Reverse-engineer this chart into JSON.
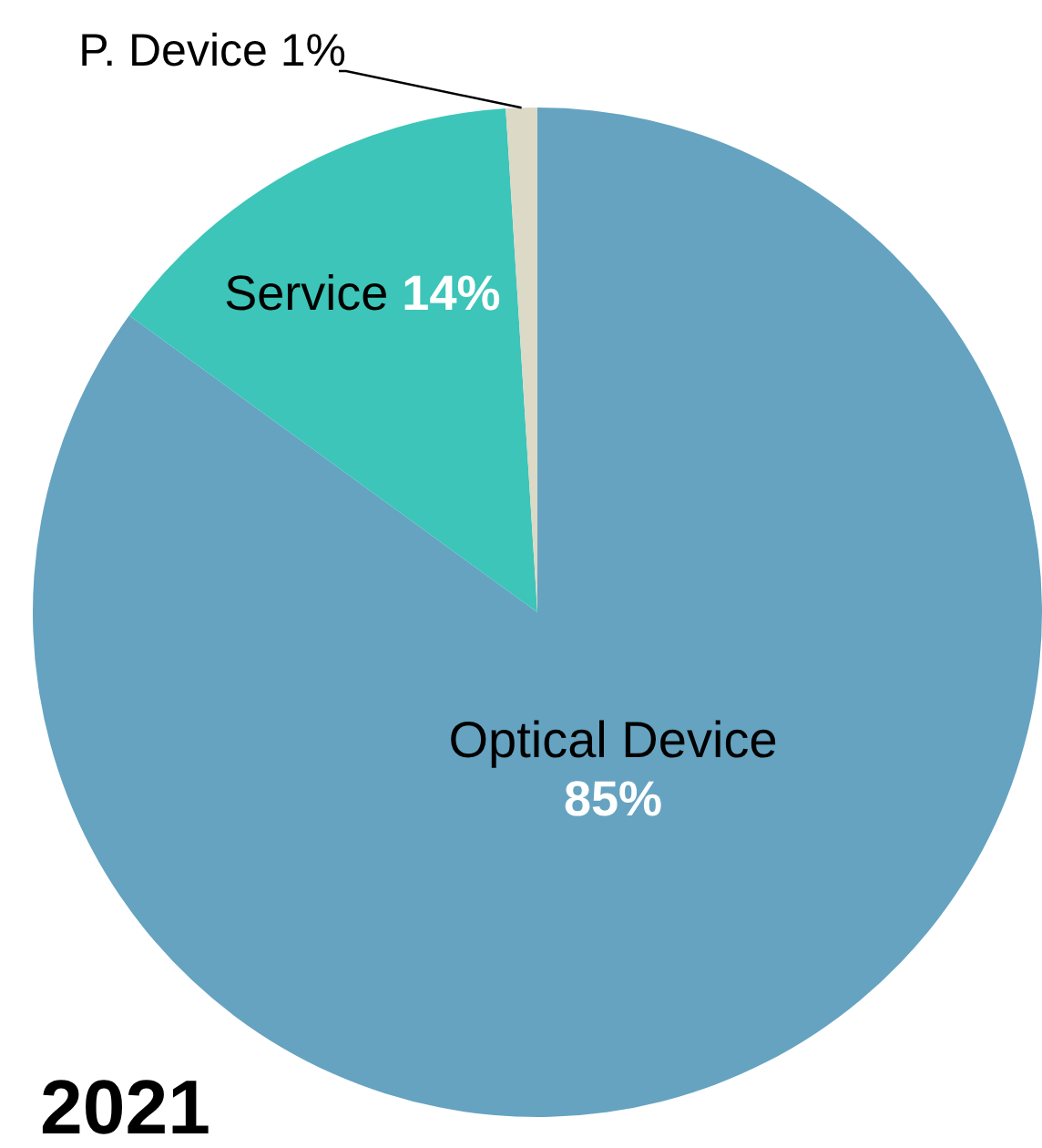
{
  "chart_data": {
    "type": "pie",
    "title": "2021",
    "categories": [
      "Optical Device",
      "Service",
      "P. Device"
    ],
    "values": [
      85,
      14,
      1
    ],
    "colors": [
      "#65a3c1",
      "#3cc5b8",
      "#dcd9c6"
    ],
    "value_labels": [
      "85%",
      "14%",
      "1%"
    ]
  }
}
